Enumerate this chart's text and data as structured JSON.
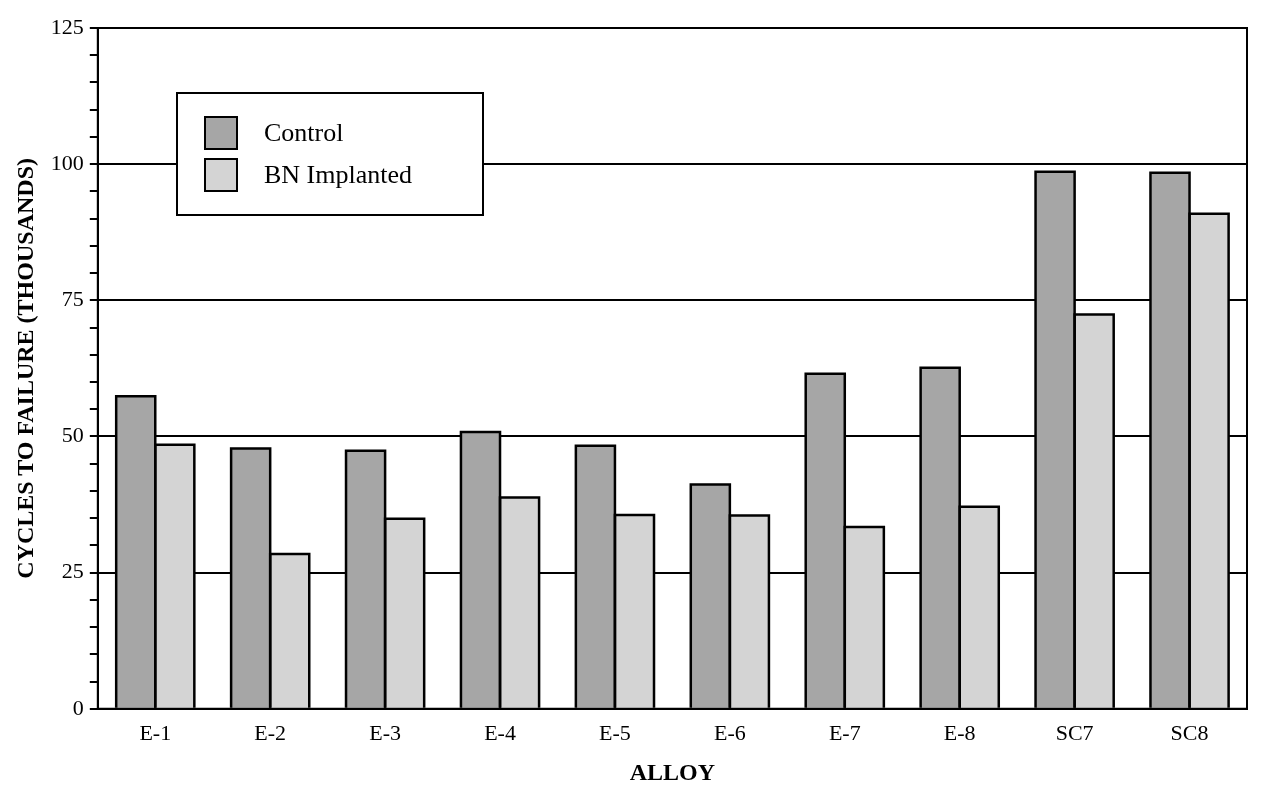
{
  "chart_data": {
    "type": "bar",
    "xlabel": "ALLOY",
    "ylabel": "CYCLES TO FAILURE (THOUSANDS)",
    "categories": [
      "E-1",
      "E-2",
      "E-3",
      "E-4",
      "E-5",
      "E-6",
      "E-7",
      "E-8",
      "SC7",
      "SC8"
    ],
    "series": [
      {
        "name": "Control",
        "color": "#a6a6a6",
        "values": [
          57.4,
          47.8,
          47.4,
          50.8,
          48.3,
          41.2,
          61.5,
          62.6,
          98.6,
          98.4
        ]
      },
      {
        "name": "BN Implanted",
        "color": "#d4d4d4",
        "values": [
          48.5,
          28.4,
          34.9,
          38.8,
          35.6,
          35.5,
          33.4,
          37.1,
          72.4,
          90.9
        ]
      }
    ],
    "ylim": [
      0,
      125
    ],
    "yticks": [
      0,
      {
        "value": 5,
        "label": null
      },
      {
        "value": 10,
        "label": null
      },
      {
        "value": 15,
        "label": null
      },
      {
        "value": 20,
        "label": null
      },
      25,
      {
        "value": 30,
        "label": null
      },
      {
        "value": 35,
        "label": null
      },
      {
        "value": 40,
        "label": null
      },
      {
        "value": 45,
        "label": null
      },
      50,
      {
        "value": 55,
        "label": null
      },
      {
        "value": 60,
        "label": null
      },
      {
        "value": 65,
        "label": null
      },
      {
        "value": 70,
        "label": null
      },
      75,
      {
        "value": 80,
        "label": null
      },
      {
        "value": 85,
        "label": null
      },
      {
        "value": 90,
        "label": null
      },
      {
        "value": 95,
        "label": null
      },
      100,
      {
        "value": 105,
        "label": null
      },
      {
        "value": 110,
        "label": null
      },
      {
        "value": 115,
        "label": null
      },
      {
        "value": 120,
        "label": null
      },
      125
    ],
    "grid": "y",
    "legend": "top left"
  }
}
